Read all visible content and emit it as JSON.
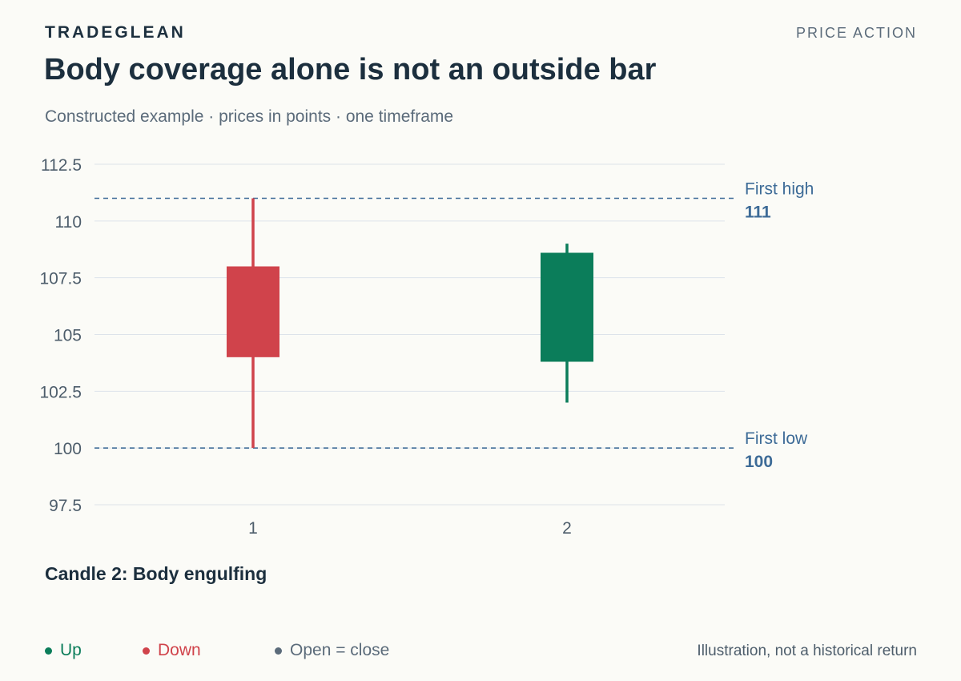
{
  "header": {
    "brand": "TRADEGLEAN",
    "section": "PRICE ACTION",
    "title": "Body coverage alone is not an outside bar",
    "subtitle": "Constructed example · prices in points · one timeframe"
  },
  "chart_data": {
    "type": "candlestick",
    "ylim": [
      97.5,
      112.5
    ],
    "yticks": [
      "112.5",
      "110",
      "107.5",
      "105",
      "102.5",
      "100",
      "97.5"
    ],
    "ytick_values": [
      112.5,
      110,
      107.5,
      105,
      102.5,
      100,
      97.5
    ],
    "candles": [
      {
        "label": "1",
        "open": 108,
        "high": 111,
        "low": 100,
        "close": 104,
        "direction": "down"
      },
      {
        "label": "2",
        "open": 103.8,
        "high": 109,
        "low": 102,
        "close": 108.6,
        "direction": "up"
      }
    ],
    "reference_lines": [
      {
        "name": "First high",
        "value": 111,
        "value_label": "111"
      },
      {
        "name": "First low",
        "value": 100,
        "value_label": "100"
      }
    ],
    "grid": true
  },
  "annotation": "Candle 2: Body engulfing",
  "legend": [
    {
      "label": "Up",
      "color": "#0b7d5a"
    },
    {
      "label": "Down",
      "color": "#d0434b"
    },
    {
      "label": "Open = close",
      "color": "#5b6b7a"
    }
  ],
  "footnote": "Illustration, not a historical return",
  "colors": {
    "up": "#0b7d5a",
    "down": "#d0434b",
    "reference": "#3d6b97",
    "grid": "#dde3ea",
    "axis_text": "#4d5d6b"
  }
}
